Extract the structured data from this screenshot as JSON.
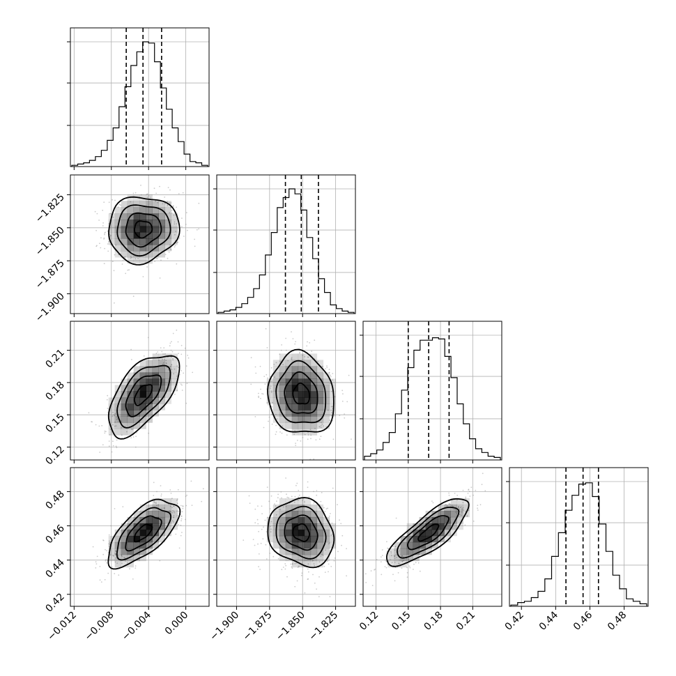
{
  "chart_data": {
    "type": "corner",
    "parameters": [
      {
        "ticks": [
          -0.012,
          -0.008,
          -0.004,
          0.0
        ],
        "tick_labels": [
          "−0.012",
          "−0.008",
          "−0.004",
          "0.000"
        ],
        "range": [
          -0.0124,
          0.0025
        ],
        "quantiles": [
          -0.0064,
          -0.0046,
          -0.0026
        ],
        "median": -0.0046,
        "sigma": 0.0019,
        "histogram": [
          0.01,
          0.02,
          0.03,
          0.05,
          0.08,
          0.13,
          0.21,
          0.31,
          0.48,
          0.64,
          0.81,
          0.92,
          1.0,
          0.99,
          0.84,
          0.63,
          0.46,
          0.31,
          0.2,
          0.1,
          0.04,
          0.03,
          0.01
        ]
      },
      {
        "ticks": [
          -1.9,
          -1.875,
          -1.85,
          -1.825
        ],
        "tick_labels": [
          "−1.900",
          "−1.875",
          "−1.850",
          "−1.825"
        ],
        "range": [
          -1.915,
          -1.81
        ],
        "quantiles": [
          -1.863,
          -1.851,
          -1.838
        ],
        "median": -1.851,
        "sigma": 0.0125,
        "histogram": [
          0.01,
          0.02,
          0.03,
          0.05,
          0.08,
          0.13,
          0.2,
          0.31,
          0.47,
          0.65,
          0.85,
          0.93,
          1.0,
          0.96,
          0.83,
          0.61,
          0.44,
          0.28,
          0.17,
          0.07,
          0.04,
          0.02,
          0.01
        ]
      },
      {
        "ticks": [
          0.12,
          0.15,
          0.18,
          0.21
        ],
        "tick_labels": [
          "0.12",
          "0.15",
          "0.18",
          "0.21"
        ],
        "range": [
          0.108,
          0.237
        ],
        "quantiles": [
          0.15,
          0.169,
          0.188
        ],
        "median": 0.169,
        "sigma": 0.019,
        "histogram": [
          0.03,
          0.05,
          0.08,
          0.14,
          0.22,
          0.37,
          0.56,
          0.74,
          0.88,
          0.96,
          0.96,
          0.98,
          0.97,
          0.83,
          0.66,
          0.45,
          0.29,
          0.17,
          0.09,
          0.06,
          0.03,
          0.02
        ]
      },
      {
        "ticks": [
          0.42,
          0.44,
          0.46,
          0.48
        ],
        "tick_labels": [
          "0.42",
          "0.44",
          "0.46",
          "0.48"
        ],
        "range": [
          0.413,
          0.494
        ],
        "quantiles": [
          0.446,
          0.456,
          0.465
        ],
        "median": 0.456,
        "sigma": 0.0098,
        "histogram": [
          0.01,
          0.03,
          0.04,
          0.07,
          0.12,
          0.22,
          0.4,
          0.59,
          0.77,
          0.89,
          0.98,
          0.99,
          0.88,
          0.66,
          0.44,
          0.25,
          0.14,
          0.06,
          0.04,
          0.02
        ]
      }
    ],
    "correlations": [
      [
        1.0,
        0.05,
        0.6,
        0.65
      ],
      [
        0.05,
        1.0,
        -0.1,
        -0.15
      ],
      [
        0.6,
        -0.1,
        1.0,
        0.8
      ],
      [
        0.65,
        -0.15,
        0.8,
        1.0
      ]
    ],
    "contour_levels_sigma": [
      0.5,
      1.0,
      1.5,
      2.0
    ],
    "grid": true,
    "colors": {
      "line": "#000000",
      "grid": "#b0b0b0",
      "points": "#8c8c8c",
      "density": "#000000"
    }
  }
}
